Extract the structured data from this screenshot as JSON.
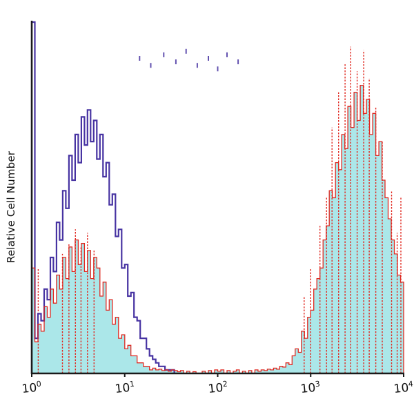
{
  "chart_data": {
    "type": "histogram",
    "title": "",
    "xlabel": "",
    "ylabel": "Relative Cell Number",
    "x_scale": "log10",
    "x_range": [
      1,
      10000
    ],
    "x_log_range": [
      0,
      4
    ],
    "y_axis": "relative count (unlabeled, no ticks)",
    "grid": false,
    "legend": "none",
    "bins": 120,
    "x_ticks": [
      {
        "u": 0,
        "base": "10",
        "exp": "0"
      },
      {
        "u": 1,
        "base": "10",
        "exp": "1"
      },
      {
        "u": 2,
        "base": "10",
        "exp": "2"
      },
      {
        "u": 3,
        "base": "10",
        "exp": "3"
      },
      {
        "u": 4,
        "base": "10",
        "exp": "4"
      }
    ],
    "colors": {
      "axis": "#1a1a1a",
      "control_line": "#4733a2",
      "stained_line": "#e02820",
      "stained_fill": "#abe7e9"
    },
    "series": [
      {
        "name": "control-open-histogram",
        "style": "open",
        "line_color": "#4733a2",
        "line_width": 2.2,
        "peak_log_x": 0.6,
        "values": [
          1.0,
          0.1,
          0.17,
          0.15,
          0.24,
          0.21,
          0.33,
          0.29,
          0.43,
          0.38,
          0.52,
          0.47,
          0.62,
          0.55,
          0.68,
          0.6,
          0.73,
          0.65,
          0.75,
          0.66,
          0.72,
          0.61,
          0.68,
          0.56,
          0.6,
          0.48,
          0.51,
          0.39,
          0.41,
          0.3,
          0.31,
          0.22,
          0.23,
          0.16,
          0.15,
          0.1,
          0.1,
          0.07,
          0.05,
          0.04,
          0.03,
          0.02,
          0.02,
          0.01,
          0.01,
          0.01,
          0,
          0,
          0,
          0,
          0,
          0,
          0,
          0,
          0,
          0,
          0,
          0,
          0,
          0,
          0,
          0,
          0,
          0,
          0,
          0,
          0,
          0,
          0,
          0,
          0,
          0,
          0,
          0,
          0,
          0,
          0,
          0,
          0,
          0,
          0,
          0,
          0,
          0,
          0,
          0,
          0,
          0,
          0,
          0,
          0,
          0,
          0,
          0,
          0,
          0,
          0,
          0,
          0,
          0,
          0,
          0,
          0,
          0,
          0,
          0,
          0,
          0,
          0,
          0,
          0,
          0,
          0,
          0,
          0,
          0,
          0,
          0,
          0,
          0
        ]
      },
      {
        "name": "stained-filled-histogram",
        "style": "filled",
        "line_color": "#e02820",
        "fill_color": "#abe7e9",
        "line_width": 1.3,
        "peak_log_x": [
          0.5,
          3.5
        ],
        "values": [
          0.3,
          0.09,
          0.14,
          0.12,
          0.19,
          0.16,
          0.24,
          0.2,
          0.28,
          0.24,
          0.33,
          0.27,
          0.36,
          0.29,
          0.38,
          0.31,
          0.37,
          0.29,
          0.35,
          0.27,
          0.33,
          0.3,
          0.22,
          0.26,
          0.18,
          0.21,
          0.14,
          0.16,
          0.1,
          0.11,
          0.07,
          0.08,
          0.05,
          0.05,
          0.03,
          0.03,
          0.02,
          0.02,
          0.01,
          0.015,
          0.01,
          0.012,
          0.008,
          0.01,
          0.006,
          0.01,
          0.008,
          0.005,
          0.008,
          0,
          0.006,
          0,
          0.005,
          0,
          0,
          0.006,
          0,
          0.008,
          0,
          0.01,
          0.006,
          0.01,
          0,
          0.008,
          0,
          0.006,
          0.01,
          0,
          0.006,
          0,
          0.008,
          0,
          0.01,
          0.006,
          0.01,
          0.008,
          0.012,
          0.01,
          0.015,
          0.012,
          0.02,
          0.018,
          0.03,
          0.025,
          0.05,
          0.07,
          0.06,
          0.12,
          0.1,
          0.16,
          0.18,
          0.24,
          0.27,
          0.3,
          0.38,
          0.42,
          0.52,
          0.5,
          0.6,
          0.58,
          0.68,
          0.64,
          0.76,
          0.7,
          0.8,
          0.72,
          0.82,
          0.74,
          0.78,
          0.68,
          0.74,
          0.62,
          0.66,
          0.55,
          0.5,
          0.44,
          0.38,
          0.34,
          0.28,
          0.26
        ]
      }
    ],
    "red_dotted_spikes": [
      {
        "u": 0.07,
        "h": 0.3
      },
      {
        "u": 0.33,
        "h": 0.34
      },
      {
        "u": 0.4,
        "h": 0.37
      },
      {
        "u": 0.47,
        "h": 0.41
      },
      {
        "u": 0.53,
        "h": 0.36
      },
      {
        "u": 0.6,
        "h": 0.4
      },
      {
        "u": 0.67,
        "h": 0.35
      },
      {
        "u": 2.93,
        "h": 0.22
      },
      {
        "u": 3.0,
        "h": 0.3
      },
      {
        "u": 3.1,
        "h": 0.42
      },
      {
        "u": 3.17,
        "h": 0.5
      },
      {
        "u": 3.23,
        "h": 0.7
      },
      {
        "u": 3.3,
        "h": 0.8
      },
      {
        "u": 3.37,
        "h": 0.88
      },
      {
        "u": 3.43,
        "h": 0.93
      },
      {
        "u": 3.5,
        "h": 0.86
      },
      {
        "u": 3.57,
        "h": 0.92
      },
      {
        "u": 3.63,
        "h": 0.84
      },
      {
        "u": 3.7,
        "h": 0.76
      },
      {
        "u": 3.77,
        "h": 0.66
      },
      {
        "u": 3.87,
        "h": 0.52
      },
      {
        "u": 3.93,
        "h": 0.4
      },
      {
        "u": 3.97,
        "h": 0.5
      }
    ],
    "stray_marks": [
      {
        "u": 1.16,
        "h": 0.89
      },
      {
        "u": 1.28,
        "h": 0.87
      },
      {
        "u": 1.42,
        "h": 0.9
      },
      {
        "u": 1.55,
        "h": 0.88
      },
      {
        "u": 1.66,
        "h": 0.91
      },
      {
        "u": 1.78,
        "h": 0.87
      },
      {
        "u": 1.9,
        "h": 0.89
      },
      {
        "u": 2.0,
        "h": 0.86
      },
      {
        "u": 2.1,
        "h": 0.9
      },
      {
        "u": 2.22,
        "h": 0.88
      }
    ]
  }
}
